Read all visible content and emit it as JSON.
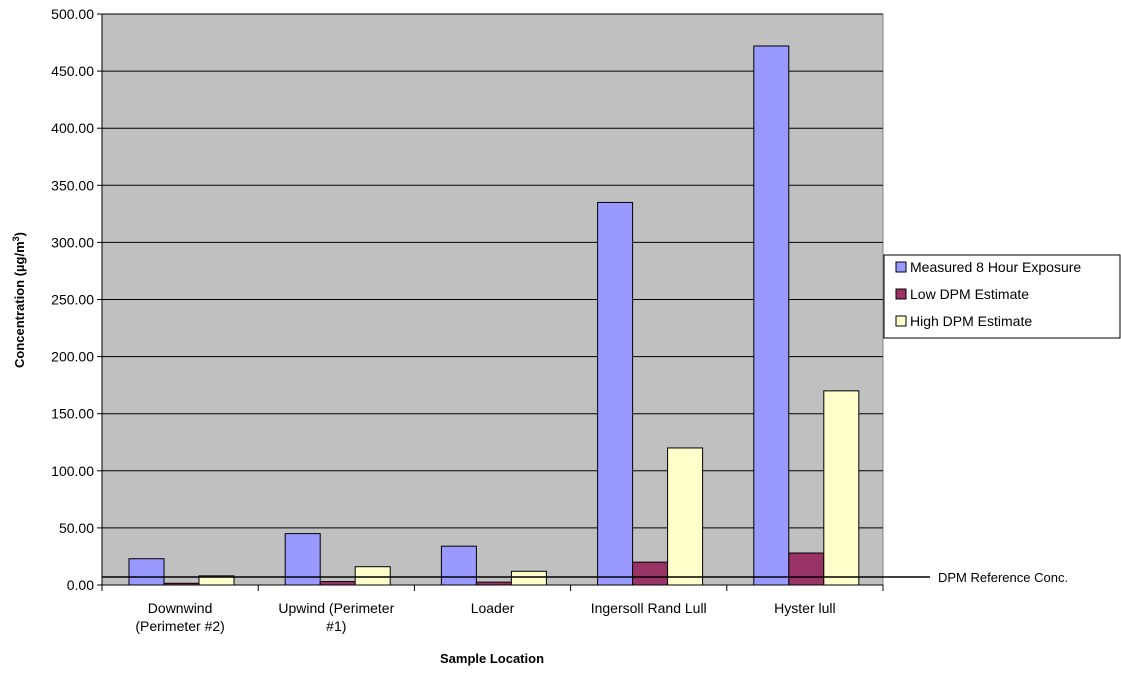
{
  "chart_data": {
    "type": "bar",
    "xlabel": "Sample Location",
    "ylabel": "Concentration (µg/m",
    "ylabel_superscript": "3",
    "ylabel_close": ")",
    "ylim": [
      0,
      500
    ],
    "yticks": [
      "0.00",
      "50.00",
      "100.00",
      "150.00",
      "200.00",
      "250.00",
      "300.00",
      "350.00",
      "400.00",
      "450.00",
      "500.00"
    ],
    "categories": [
      [
        "Downwind",
        "(Perimeter #2)"
      ],
      [
        "Upwind (Perimeter",
        "#1)"
      ],
      [
        "Loader"
      ],
      [
        "Ingersoll Rand Lull"
      ],
      [
        "Hyster lull"
      ]
    ],
    "series": [
      {
        "name": "Measured 8 Hour Exposure",
        "color": "#9999ff",
        "values": [
          23,
          45,
          34,
          335,
          472
        ]
      },
      {
        "name": "Low DPM Estimate",
        "color": "#993366",
        "values": [
          1.5,
          3,
          2.5,
          20,
          28
        ]
      },
      {
        "name": "High DPM Estimate",
        "color": "#ffffcc",
        "values": [
          8,
          16,
          12,
          120,
          170
        ]
      }
    ],
    "reference_line": {
      "label": "DPM Reference Conc.",
      "value": 7
    },
    "grid": true,
    "plot_background": "#c0c0c0",
    "legend_position": "right"
  }
}
